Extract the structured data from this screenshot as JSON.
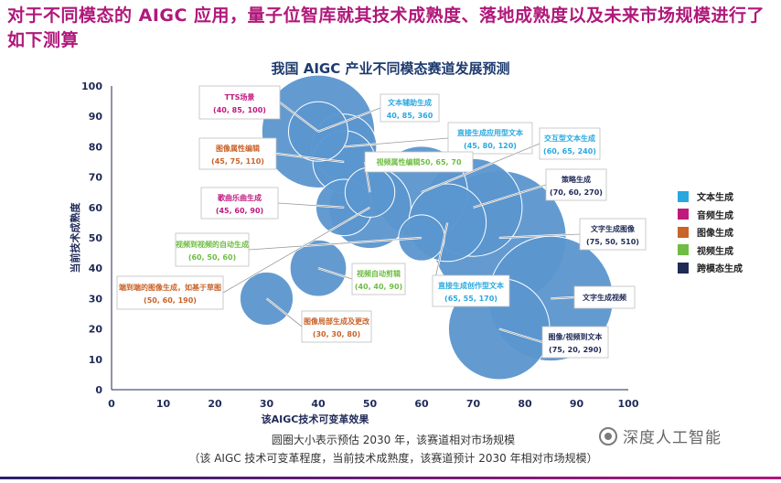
{
  "headline": "对于不同模态的 AIGC 应用，量子位智库就其技术成熟度、落地成熟度以及未来市场规模进行了如下测算",
  "chart_data": {
    "type": "bubble",
    "title": "我国 AIGC 产业不同模态赛道发展预测",
    "xlabel": "该AIGC技术可变革效果",
    "ylabel": "当前技术成熟度",
    "xlim": [
      0,
      100
    ],
    "ylim": [
      0,
      100
    ],
    "xticks": [
      0,
      10,
      20,
      30,
      40,
      50,
      60,
      70,
      80,
      90,
      100
    ],
    "yticks": [
      0,
      10,
      20,
      30,
      40,
      50,
      60,
      70,
      80,
      90,
      100
    ],
    "grid": false,
    "legend_position": "right",
    "size_note": "圆圈大小表示预估 2030 年，该赛道相对市场规模",
    "axis_note": "（该 AIGC 技术可变革程度，当前技术成熟度，该赛道预计 2030 年相对市场规模）",
    "categories": [
      {
        "name": "文本生成",
        "color": "#29a8e0"
      },
      {
        "name": "音频生成",
        "color": "#c0197e"
      },
      {
        "name": "图像生成",
        "color": "#c8632a"
      },
      {
        "name": "视频生成",
        "color": "#6fbd44"
      },
      {
        "name": "跨模态生成",
        "color": "#1f2a57"
      }
    ],
    "points": [
      {
        "label": "TTS场景",
        "value_text": "(40, 85, 100)",
        "category": "音频生成",
        "x": 40,
        "y": 85,
        "size": 100
      },
      {
        "label": "文本辅助生成",
        "value_text": "40, 85, 360",
        "category": "文本生成",
        "x": 40,
        "y": 85,
        "size": 360
      },
      {
        "label": "图像属性编辑",
        "value_text": "(45, 75, 110)",
        "category": "图像生成",
        "x": 45,
        "y": 75,
        "size": 110
      },
      {
        "label": "直接生成应用型文本",
        "value_text": "(45, 80, 120)",
        "category": "文本生成",
        "x": 45,
        "y": 80,
        "size": 120
      },
      {
        "label": "视频属性编辑50, 65, 70",
        "value_text": "",
        "category": "视频生成",
        "x": 50,
        "y": 65,
        "size": 70
      },
      {
        "label": "交互型文本生成",
        "value_text": "(60, 65, 240)",
        "category": "文本生成",
        "x": 60,
        "y": 65,
        "size": 240
      },
      {
        "label": "策略生成",
        "value_text": "(70, 60, 270)",
        "category": "跨模态生成",
        "x": 70,
        "y": 60,
        "size": 270
      },
      {
        "label": "歌曲乐曲生成",
        "value_text": "(45, 60, 90)",
        "category": "音频生成",
        "x": 45,
        "y": 60,
        "size": 90
      },
      {
        "label": "文字生成图像",
        "value_text": "(75, 50, 510)",
        "category": "跨模态生成",
        "x": 75,
        "y": 50,
        "size": 510
      },
      {
        "label": "视频到视频的自动生成",
        "value_text": "(60, 50, 60)",
        "category": "视频生成",
        "x": 60,
        "y": 50,
        "size": 60
      },
      {
        "label": "视频自动剪辑",
        "value_text": "(40, 40, 90)",
        "category": "视频生成",
        "x": 40,
        "y": 40,
        "size": 90
      },
      {
        "label": "端到端的图像生成，如基于草图",
        "value_text": "(50, 60, 190)",
        "category": "图像生成",
        "x": 50,
        "y": 60,
        "size": 190
      },
      {
        "label": "直接生成创作型文本",
        "value_text": "(65, 55, 170)",
        "category": "文本生成",
        "x": 65,
        "y": 55,
        "size": 170
      },
      {
        "label": "文字生成视频",
        "value_text": "",
        "category": "跨模态生成",
        "x": 85,
        "y": 30,
        "size": 440
      },
      {
        "label": "图像局部生成及更改",
        "value_text": "(30, 30, 80)",
        "category": "图像生成",
        "x": 30,
        "y": 30,
        "size": 80
      },
      {
        "label": "图像/视频到文本",
        "value_text": "(75, 20, 290)",
        "category": "跨模态生成",
        "x": 75,
        "y": 20,
        "size": 290
      }
    ]
  },
  "watermark": "深度人工智能",
  "colors": {
    "headline": "#b0187a",
    "bubble_fill": "#5b96cf",
    "bubble_stroke": "#ffffff",
    "axis": "#1f2a57",
    "label_border": "#bfbfbf"
  }
}
